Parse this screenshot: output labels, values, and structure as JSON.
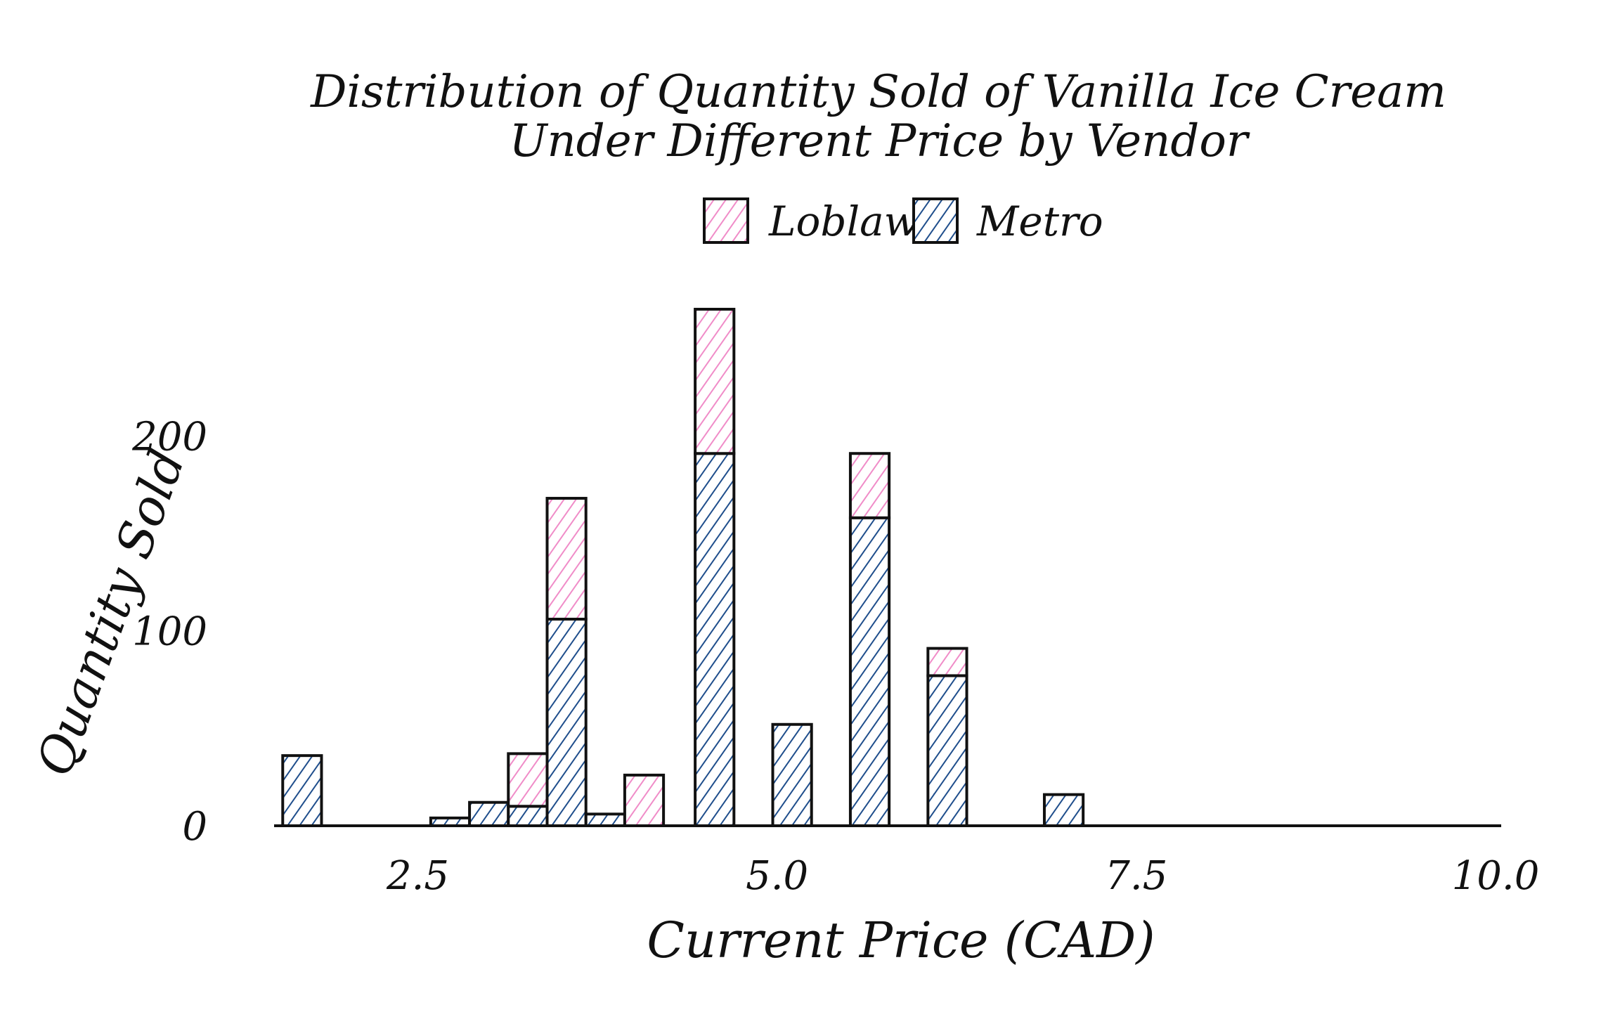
{
  "chart_data": {
    "type": "bar",
    "stacked": true,
    "title": [
      "Distribution of Quantity Sold of Vanilla Ice Cream",
      "Under Different Price by Vendor"
    ],
    "xlabel": "Current Price (CAD)",
    "ylabel": "Quantity Sold",
    "xlim": [
      1.5,
      10.0
    ],
    "ylim": [
      0,
      265
    ],
    "x_ticks": [
      2.5,
      5.0,
      7.5,
      10.0
    ],
    "x_tick_labels": [
      "2.5",
      "5.0",
      "7.5",
      "10.0"
    ],
    "y_ticks": [
      0,
      100,
      200
    ],
    "y_tick_labels": [
      "0",
      "100",
      "200"
    ],
    "bin_width": 0.27,
    "legend": {
      "placement": "top-center",
      "entries": [
        "Loblaws",
        "Metro"
      ]
    },
    "grid": false,
    "series": [
      {
        "name": "Metro",
        "color": "#1f4e8c",
        "bins": [
          {
            "x": 1.56,
            "value": 36
          },
          {
            "x": 2.59,
            "value": 4
          },
          {
            "x": 2.86,
            "value": 12
          },
          {
            "x": 3.13,
            "value": 10
          },
          {
            "x": 3.4,
            "value": 106
          },
          {
            "x": 3.67,
            "value": 6
          },
          {
            "x": 4.43,
            "value": 191
          },
          {
            "x": 4.97,
            "value": 52
          },
          {
            "x": 5.51,
            "value": 158
          },
          {
            "x": 6.05,
            "value": 77
          },
          {
            "x": 6.86,
            "value": 16
          }
        ]
      },
      {
        "name": "Loblaws",
        "color": "#f08cc8",
        "bins": [
          {
            "x": 3.13,
            "value": 27
          },
          {
            "x": 3.4,
            "value": 62
          },
          {
            "x": 3.94,
            "value": 26
          },
          {
            "x": 4.43,
            "value": 74
          },
          {
            "x": 5.51,
            "value": 33
          },
          {
            "x": 6.05,
            "value": 14
          }
        ]
      }
    ]
  }
}
